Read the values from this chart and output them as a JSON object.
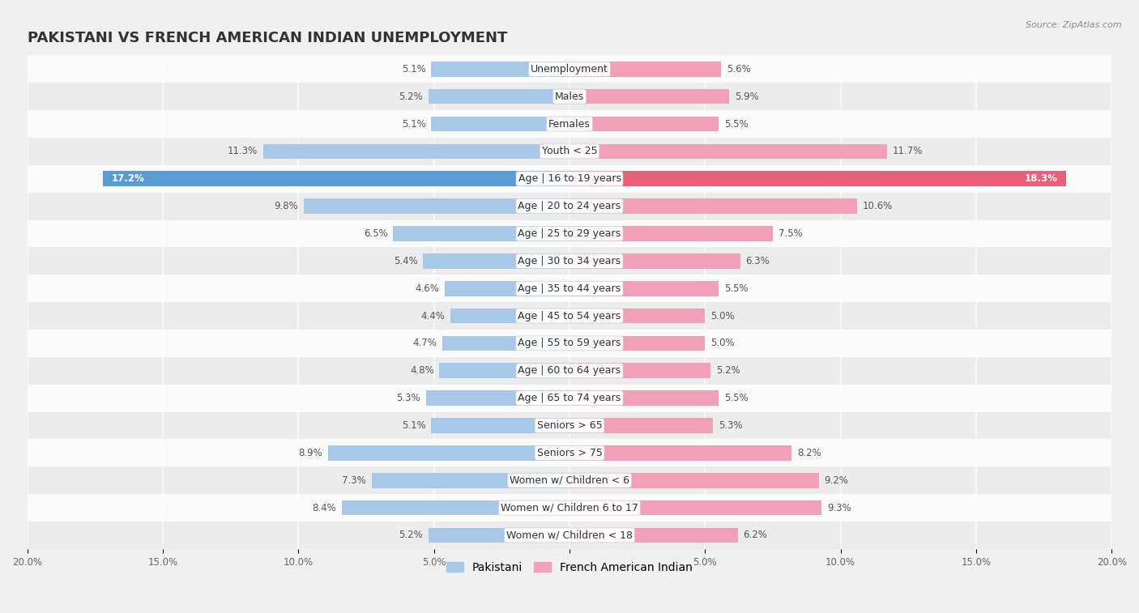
{
  "title": "PAKISTANI VS FRENCH AMERICAN INDIAN UNEMPLOYMENT",
  "source": "Source: ZipAtlas.com",
  "categories": [
    "Unemployment",
    "Males",
    "Females",
    "Youth < 25",
    "Age | 16 to 19 years",
    "Age | 20 to 24 years",
    "Age | 25 to 29 years",
    "Age | 30 to 34 years",
    "Age | 35 to 44 years",
    "Age | 45 to 54 years",
    "Age | 55 to 59 years",
    "Age | 60 to 64 years",
    "Age | 65 to 74 years",
    "Seniors > 65",
    "Seniors > 75",
    "Women w/ Children < 6",
    "Women w/ Children 6 to 17",
    "Women w/ Children < 18"
  ],
  "pakistani": [
    5.1,
    5.2,
    5.1,
    11.3,
    17.2,
    9.8,
    6.5,
    5.4,
    4.6,
    4.4,
    4.7,
    4.8,
    5.3,
    5.1,
    8.9,
    7.3,
    8.4,
    5.2
  ],
  "french_american_indian": [
    5.6,
    5.9,
    5.5,
    11.7,
    18.3,
    10.6,
    7.5,
    6.3,
    5.5,
    5.0,
    5.0,
    5.2,
    5.5,
    5.3,
    8.2,
    9.2,
    9.3,
    6.2
  ],
  "pakistani_color": "#a8c8e8",
  "french_color": "#f0a0b8",
  "highlight_pakistani_color": "#5b9bd5",
  "highlight_french_color": "#e8607a",
  "bar_height": 0.55,
  "xlim": 20,
  "background_color": "#f0f0f0",
  "row_bg_colors": [
    "#fafafa",
    "#ececec"
  ],
  "title_fontsize": 13,
  "label_fontsize": 9,
  "value_fontsize": 8.5,
  "tick_positions": [
    -20,
    -15,
    -10,
    -5,
    0,
    5,
    10,
    15,
    20
  ],
  "tick_labels": [
    "20.0%",
    "15.0%",
    "10.0%",
    "5.0%",
    "",
    "5.0%",
    "10.0%",
    "15.0%",
    "20.0%"
  ]
}
